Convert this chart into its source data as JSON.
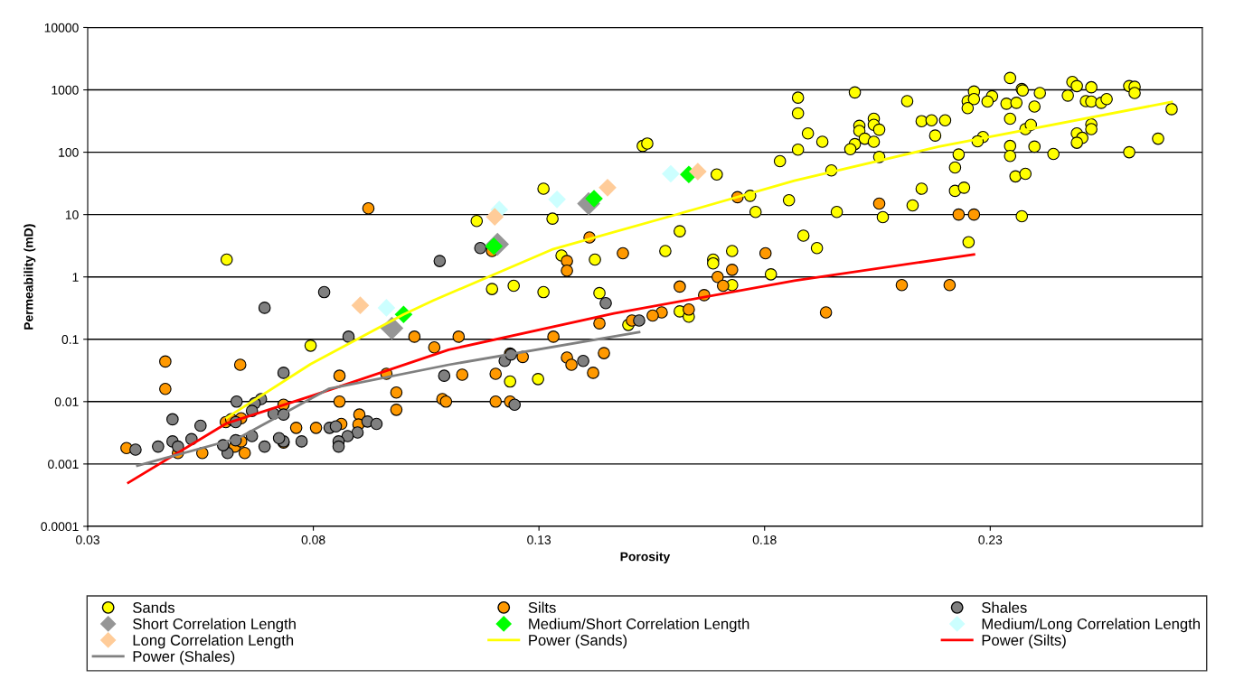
{
  "chart_data": {
    "type": "scatter",
    "xlabel": "Porosity",
    "ylabel": "Permeability (mD)",
    "log": "y",
    "xlim": [
      0.03,
      0.277
    ],
    "xticks": [
      0.03,
      0.08,
      0.13,
      0.18,
      0.23
    ],
    "ylim": [
      0.0001,
      10000
    ],
    "yticks": [
      0.0001,
      0.001,
      0.01,
      0.1,
      1,
      10,
      100,
      1000,
      10000
    ],
    "grid": "y",
    "legend": "bottom",
    "series": [
      {
        "name": "Sands",
        "marker": "circle",
        "color": "#ffff00",
        "x": [
          0.0608,
          0.0794,
          0.1162,
          0.1196,
          0.1244,
          0.1236,
          0.131,
          0.133,
          0.135,
          0.131,
          0.1298,
          0.1424,
          0.1434,
          0.1498,
          0.153,
          0.154,
          0.158,
          0.1612,
          0.1612,
          0.1632,
          0.1686,
          0.1686,
          0.1728,
          0.1728,
          0.1814,
          0.1694,
          0.1834,
          0.1768,
          0.178,
          0.1854,
          0.1874,
          0.1874,
          0.2,
          0.2116,
          0.2344,
          0.237,
          0.2372,
          0.241,
          0.2482,
          0.2492,
          0.2524,
          0.2608,
          0.262,
          0.262,
          0.2264,
          0.225,
          0.2264,
          0.225,
          0.2304,
          0.2294,
          0.2336,
          0.2358,
          0.2398,
          0.2472,
          0.2512,
          0.2524,
          0.2546,
          0.2558,
          0.2702,
          0.1896,
          0.1928,
          0.1874,
          0.201,
          0.201,
          0.2042,
          0.2042,
          0.2054,
          0.2022,
          0.2,
          0.199,
          0.2042,
          0.2054,
          0.2148,
          0.217,
          0.22,
          0.2178,
          0.1948,
          0.223,
          0.2222,
          0.2148,
          0.2222,
          0.2242,
          0.2128,
          0.2284,
          0.2272,
          0.2344,
          0.2344,
          0.2344,
          0.2378,
          0.239,
          0.2398,
          0.244,
          0.2356,
          0.2378,
          0.2492,
          0.2504,
          0.2492,
          0.2524,
          0.2524,
          0.2608,
          0.2672,
          0.196,
          0.2062,
          0.2252,
          0.237,
          0.1886,
          0.1916
        ],
        "values": [
          1.9,
          0.079,
          7.9,
          0.64,
          0.72,
          0.021,
          26,
          8.6,
          2.2,
          0.57,
          0.023,
          1.9,
          0.55,
          0.17,
          126,
          138,
          2.6,
          5.4,
          0.28,
          0.23,
          1.9,
          1.65,
          2.6,
          0.74,
          1.1,
          44,
          72,
          20,
          11,
          17,
          750,
          420,
          910,
          660,
          1550,
          1030,
          980,
          890,
          1340,
          1150,
          1100,
          1150,
          1120,
          890,
          940,
          660,
          710,
          510,
          790,
          650,
          600,
          620,
          540,
          810,
          660,
          650,
          620,
          710,
          490,
          200,
          147,
          110,
          265,
          220,
          345,
          275,
          230,
          165,
          135,
          112,
          147,
          84,
          315,
          325,
          325,
          185,
          51,
          92,
          57,
          26,
          24,
          27,
          14,
          175,
          150,
          345,
          126,
          87,
          235,
          275,
          123,
          94,
          41,
          45,
          200,
          170,
          142,
          280,
          235,
          100,
          165,
          11,
          9.1,
          3.6,
          9.4,
          4.6,
          2.9
        ]
      },
      {
        "name": "Silts",
        "marker": "circle",
        "color": "#ff9900",
        "x": [
          0.0922,
          0.0472,
          0.0472,
          0.0638,
          0.0858,
          0.0858,
          0.0962,
          0.0984,
          0.0984,
          0.1024,
          0.1068,
          0.1086,
          0.1094,
          0.0902,
          0.09,
          0.0862,
          0.0806,
          0.0762,
          0.0734,
          0.0734,
          0.0648,
          0.0626,
          0.064,
          0.0606,
          0.0618,
          0.064,
          0.0554,
          0.05,
          0.0386,
          0.1122,
          0.1332,
          0.113,
          0.1204,
          0.1204,
          0.1236,
          0.1236,
          0.1264,
          0.1362,
          0.1372,
          0.142,
          0.1444,
          0.1362,
          0.1362,
          0.1486,
          0.1412,
          0.1196,
          0.1728,
          0.1802,
          0.1696,
          0.1708,
          0.1612,
          0.1666,
          0.1632,
          0.1572,
          0.1552,
          0.1506,
          0.1434,
          0.174,
          0.2054,
          0.223,
          0.2264,
          0.2104,
          0.221,
          0.1936
        ],
        "values": [
          12.6,
          0.044,
          0.016,
          0.039,
          0.026,
          0.01,
          0.028,
          0.014,
          0.0074,
          0.11,
          0.074,
          0.011,
          0.01,
          0.0062,
          0.0043,
          0.0044,
          0.0038,
          0.0038,
          0.0089,
          0.0022,
          0.0015,
          0.0019,
          0.0023,
          0.0047,
          0.0052,
          0.0054,
          0.0015,
          0.0015,
          0.0018,
          0.11,
          0.11,
          0.027,
          0.028,
          0.01,
          0.01,
          0.059,
          0.052,
          0.051,
          0.039,
          0.029,
          0.06,
          1.8,
          1.26,
          2.4,
          4.3,
          2.6,
          1.3,
          2.4,
          1.0,
          0.72,
          0.7,
          0.51,
          0.3,
          0.27,
          0.24,
          0.2,
          0.18,
          19,
          15,
          10,
          10,
          0.74,
          0.74,
          0.27
        ]
      },
      {
        "name": "Shales",
        "marker": "circle",
        "color": "#808080",
        "x": [
          0.108,
          0.0824,
          0.0692,
          0.0878,
          0.0734,
          0.109,
          0.0684,
          0.063,
          0.067,
          0.0664,
          0.0712,
          0.0734,
          0.0488,
          0.055,
          0.0628,
          0.0836,
          0.085,
          0.092,
          0.094,
          0.0898,
          0.0876,
          0.0856,
          0.0856,
          0.0774,
          0.0734,
          0.0724,
          0.0692,
          0.0664,
          0.0628,
          0.061,
          0.06,
          0.053,
          0.0488,
          0.0456,
          0.05,
          0.0406,
          0.117,
          0.1448,
          0.1522,
          0.1224,
          0.1398,
          0.1246,
          0.1238
        ],
        "values": [
          1.8,
          0.57,
          0.32,
          0.11,
          0.029,
          0.026,
          0.011,
          0.01,
          0.0094,
          0.0071,
          0.0064,
          0.0062,
          0.0052,
          0.0041,
          0.0047,
          0.0038,
          0.004,
          0.0048,
          0.0044,
          0.0032,
          0.0028,
          0.0023,
          0.0019,
          0.0023,
          0.0023,
          0.0026,
          0.0019,
          0.0028,
          0.0024,
          0.0015,
          0.002,
          0.0025,
          0.0023,
          0.0019,
          0.0019,
          0.0017,
          2.9,
          0.38,
          0.2,
          0.045,
          0.045,
          0.0089,
          0.057
        ]
      },
      {
        "name": "Short Correlation Length",
        "marker": "diamond",
        "color": "#969696",
        "x": [
          0.0974,
          0.1208,
          0.141
        ],
        "values": [
          0.15,
          3.35,
          15
        ]
      },
      {
        "name": "Medium/Short Correlation Length",
        "marker": "diamond",
        "color": "#00ff00",
        "x": [
          0.1,
          0.12,
          0.1422,
          0.1632
        ],
        "values": [
          0.25,
          3.1,
          18,
          44
        ]
      },
      {
        "name": "Medium/Long Correlation Length",
        "marker": "diamond",
        "color": "#ccffff",
        "x": [
          0.0962,
          0.1212,
          0.134,
          0.1592
        ],
        "values": [
          0.32,
          12,
          17.5,
          45
        ]
      },
      {
        "name": "Long Correlation Length",
        "marker": "diamond",
        "color": "#ffcc99",
        "x": [
          0.0904,
          0.1202,
          0.1452,
          0.1652
        ],
        "values": [
          0.35,
          9.2,
          27,
          49
        ]
      },
      {
        "name": "Power (Sands)",
        "type": "line",
        "marker": "none",
        "line_style": "solid",
        "color": "#ffff00",
        "x": [
          0.0608,
          0.0794,
          0.1,
          0.1066,
          0.1332,
          0.16,
          0.1866,
          0.2186,
          0.2702
        ],
        "values": [
          0.0055,
          0.04,
          0.25,
          0.42,
          2.8,
          9.8,
          35,
          123,
          640
        ]
      },
      {
        "name": "Power (Silts)",
        "type": "line",
        "marker": "none",
        "line_style": "solid",
        "color": "#ff0000",
        "x": [
          0.039,
          0.0608,
          0.08,
          0.11,
          0.1466,
          0.1866,
          0.2264
        ],
        "values": [
          0.0005,
          0.0045,
          0.0126,
          0.068,
          0.26,
          0.87,
          2.3
        ]
      },
      {
        "name": "Power (Shales)",
        "type": "line",
        "marker": "none",
        "line_style": "solid",
        "color": "#808080",
        "x": [
          0.041,
          0.0634,
          0.0834,
          0.11,
          0.1522
        ],
        "values": [
          0.00094,
          0.0026,
          0.016,
          0.039,
          0.13
        ]
      }
    ]
  }
}
